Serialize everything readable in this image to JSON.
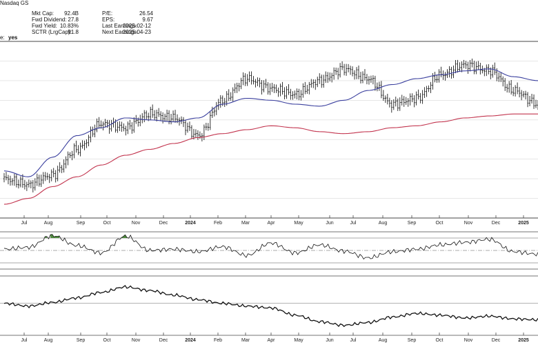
{
  "header": {
    "exchange": "Nasdaq GS",
    "stats_left": [
      {
        "label": "Mkt Cap:",
        "value": "92.4B"
      },
      {
        "label": "Fwd Dividend:",
        "value": "27.8"
      },
      {
        "label": "Fwd Yield:",
        "value": "10.83%"
      },
      {
        "label": "SCTR (LrgCap):",
        "value": "91.8"
      }
    ],
    "stats_right": [
      {
        "label": "P/E:",
        "value": "26.54"
      },
      {
        "label": "EPS:",
        "value": "9.67"
      },
      {
        "label": "Last Earnings:",
        "value": "2025-02-12"
      },
      {
        "label": "Next Earnings:",
        "value": "2025-04-23"
      }
    ],
    "partial_label": "e:",
    "partial_value": "yes"
  },
  "colors": {
    "price": "#000000",
    "sma_short": "#3a3f9e",
    "sma_long": "#c2334d",
    "overbought_fill": "#4e8a3e",
    "grid": "#d8d8d8",
    "axis": "#444444"
  },
  "chart_data": [
    {
      "type": "line",
      "panel": "price",
      "style": "ohlc-bars",
      "x_ticks": [
        "Jul",
        "Aug",
        "Sep",
        "Oct",
        "Nov",
        "Dec",
        "2024",
        "Feb",
        "Mar",
        "Apr",
        "May",
        "Jun",
        "Jul",
        "Aug",
        "Sep",
        "Oct",
        "Nov",
        "Dec",
        "2025"
      ],
      "x": [
        0,
        4,
        8,
        12,
        16,
        20,
        24,
        28,
        32,
        36,
        40,
        44,
        48,
        52,
        56,
        60,
        64,
        68,
        72,
        76,
        80,
        84,
        88
      ],
      "series": [
        {
          "values": [
            100,
            97,
            102,
            115,
            128,
            126,
            133,
            131,
            122,
            140,
            151,
            146,
            143,
            150,
            156,
            151,
            138,
            141,
            153,
            158,
            155,
            145,
            138
          ]
        },
        {
          "values": [
            104,
            101,
            111,
            122,
            126,
            131,
            130,
            129,
            131,
            138,
            141,
            140,
            138,
            137,
            140,
            145,
            148,
            151,
            153,
            155,
            156,
            152,
            150
          ]
        },
        {
          "values": [
            87,
            90,
            96,
            101,
            107,
            112,
            115,
            118,
            121,
            123,
            125,
            127,
            126,
            124,
            123,
            124,
            126,
            127,
            129,
            131,
            132,
            133,
            133
          ]
        }
      ]
    },
    {
      "type": "line",
      "panel": "oscillator",
      "x": [
        0,
        4,
        8,
        12,
        16,
        20,
        24,
        28,
        32,
        36,
        40,
        44,
        48,
        52,
        56,
        60,
        64,
        68,
        72,
        76,
        80,
        84,
        88
      ],
      "series": [
        {
          "values": [
            52,
            55,
            74,
            58,
            46,
            73,
            50,
            52,
            48,
            56,
            42,
            62,
            46,
            59,
            49,
            38,
            48,
            52,
            59,
            63,
            68,
            48,
            44
          ]
        }
      ],
      "reference_lines": [
        70,
        50,
        30
      ]
    },
    {
      "type": "line",
      "panel": "lower",
      "x": [
        0,
        4,
        8,
        12,
        16,
        20,
        24,
        28,
        32,
        36,
        40,
        44,
        48,
        52,
        56,
        60,
        64,
        68,
        72,
        76,
        80,
        84,
        88
      ],
      "series": [
        {
          "values": [
            60,
            57,
            61,
            66,
            72,
            78,
            74,
            69,
            64,
            60,
            57,
            55,
            47,
            40,
            36,
            39,
            45,
            49,
            47,
            44,
            46,
            43,
            42
          ]
        }
      ]
    }
  ]
}
